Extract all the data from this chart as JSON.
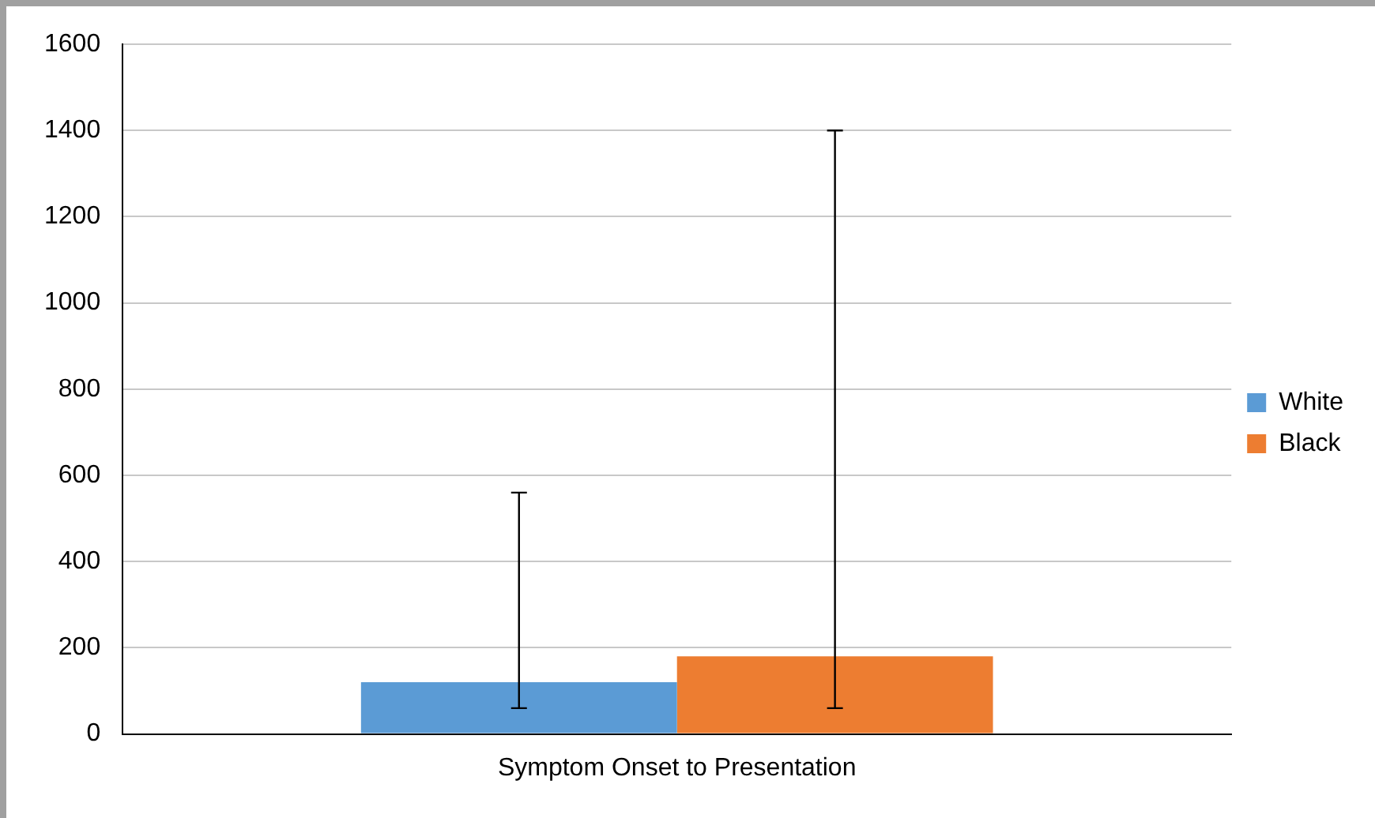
{
  "chart_data": {
    "type": "bar",
    "categories": [
      "Symptom Onset to Presentation"
    ],
    "series": [
      {
        "name": "White",
        "color": "#5b9bd5",
        "values": [
          120
        ],
        "errors": [
          [
            60,
            560
          ]
        ]
      },
      {
        "name": "Black",
        "color": "#ed7d31",
        "values": [
          180
        ],
        "errors": [
          [
            60,
            1400
          ]
        ]
      }
    ],
    "ylim": [
      0,
      1600
    ],
    "yticks": [
      0,
      200,
      400,
      600,
      800,
      1000,
      1200,
      1400,
      1600
    ],
    "grid": "y",
    "legend": "right"
  }
}
